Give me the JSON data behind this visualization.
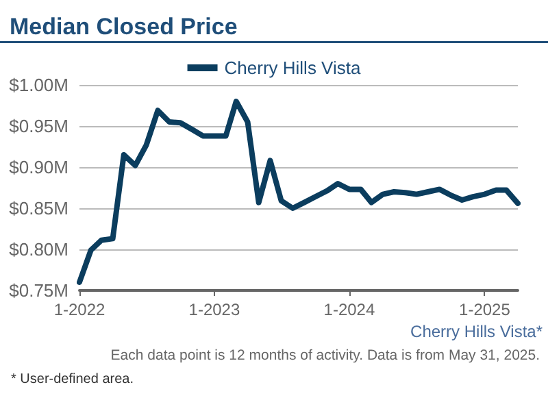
{
  "chart_data": {
    "type": "line",
    "title": "Median Closed Price",
    "x": [
      "2022-01",
      "2022-02",
      "2022-03",
      "2022-04",
      "2022-05",
      "2022-06",
      "2022-07",
      "2022-08",
      "2022-09",
      "2022-10",
      "2022-11",
      "2022-12",
      "2023-01",
      "2023-02",
      "2023-03",
      "2023-04",
      "2023-05",
      "2023-06",
      "2023-07",
      "2023-08",
      "2023-09",
      "2023-10",
      "2023-11",
      "2023-12",
      "2024-01",
      "2024-02",
      "2024-03",
      "2024-04",
      "2024-05",
      "2024-06",
      "2024-07",
      "2024-08",
      "2024-09",
      "2024-10",
      "2024-11",
      "2024-12",
      "2025-01",
      "2025-02",
      "2025-03",
      "2025-04"
    ],
    "series": [
      {
        "name": "Cherry Hills Vista",
        "color": "#0b3d5e",
        "values": [
          760000,
          799000,
          811000,
          813000,
          915000,
          902000,
          927000,
          969000,
          955000,
          954000,
          946000,
          938000,
          938000,
          938000,
          980000,
          955000,
          857000,
          908000,
          859000,
          850000,
          857000,
          864000,
          871000,
          880000,
          873000,
          873000,
          857000,
          867000,
          870000,
          869000,
          867000,
          870000,
          873000,
          866000,
          860000,
          864000,
          867000,
          872000,
          872000,
          856000
        ]
      }
    ],
    "xlim": [
      "2022-01",
      "2025-04"
    ],
    "xticks": [
      {
        "value": "2022-01",
        "label": "1-2022"
      },
      {
        "value": "2023-01",
        "label": "1-2023"
      },
      {
        "value": "2024-01",
        "label": "1-2024"
      },
      {
        "value": "2025-01",
        "label": "1-2025"
      }
    ],
    "ylim": [
      750000,
      1000000
    ],
    "yticks": [
      {
        "value": 750000,
        "label": "$0.75M"
      },
      {
        "value": 800000,
        "label": "$0.80M"
      },
      {
        "value": 850000,
        "label": "$0.85M"
      },
      {
        "value": 900000,
        "label": "$0.90M"
      },
      {
        "value": 950000,
        "label": "$0.95M"
      },
      {
        "value": 1000000,
        "label": "$1.00M"
      }
    ],
    "grid": "y",
    "legend": "top",
    "marker": "none",
    "line_style": "solid",
    "annotations": [
      "Cherry Hills Vista*",
      "Each data point is 12 months of activity. Data is from May 31, 2025.",
      "* User-defined area."
    ]
  }
}
